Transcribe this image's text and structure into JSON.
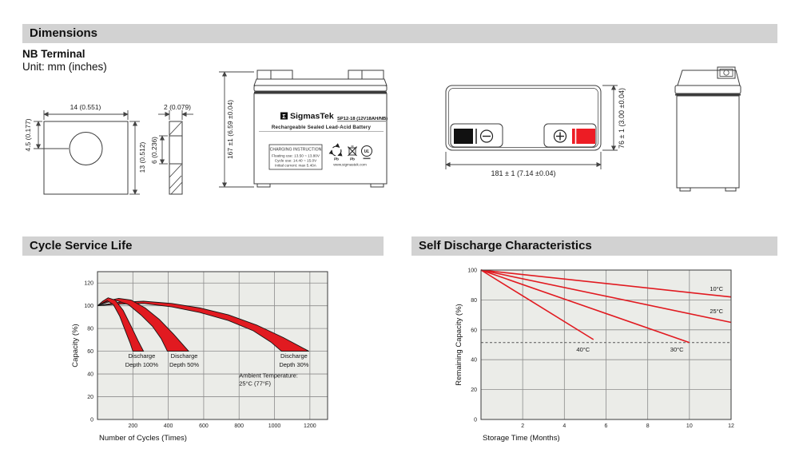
{
  "sections": {
    "dimensions": {
      "title": "Dimensions"
    },
    "terminal": {
      "heading": "NB Terminal",
      "unit_note": "Unit: mm (inches)"
    },
    "cycle_life": {
      "title": "Cycle Service Life"
    },
    "self_discharge": {
      "title": "Self Discharge Characteristics"
    }
  },
  "drawings": {
    "terminal_front": {
      "width": "14 (0.551)",
      "hole_offset": "4.5 (0.177)",
      "height": "13 (0.512)"
    },
    "terminal_side": {
      "thickness": "2 (0.079)",
      "slot_height": "6 (0.236)"
    },
    "battery_front": {
      "height_dim": "167 ±1 (6.59 ±0.04)",
      "brand": "SigmasTek",
      "brand_glyph": "Σ",
      "model": "SP12-18 (12V18AH/NB)",
      "subtitle": "Rechargeable Sealed Lead-Acid Battery",
      "charging_title": "CHARGING INSTRUCTION",
      "charging_line1": "Floating use: 13.50 ~ 13.80V",
      "charging_line2": "Cycle use: 14.40 ~ 15.0V",
      "charging_line3": "Initial current: max 5.40A",
      "pb_recycle": "Pb",
      "pb_trash": "Pb",
      "ul_text": "UL",
      "website": "www.sigmastek.com"
    },
    "battery_top": {
      "width_dim": "181 ± 1 (7.14 ±0.04)",
      "depth_dim": "76 ± 1 (3.00 ±0.04)"
    }
  },
  "colors": {
    "accent_red": "#e11a20",
    "terminal_red": "#ed1c24",
    "header_bar": "#d2d2d2"
  },
  "chart_data": [
    {
      "type": "area",
      "title": "Cycle Service Life",
      "xlabel": "Number of Cycles (Times)",
      "ylabel": "Capacity (%)",
      "xlim": [
        0,
        1300
      ],
      "ylim": [
        0,
        130
      ],
      "x_ticks": [
        200,
        400,
        600,
        800,
        1000,
        1200
      ],
      "y_ticks": [
        0,
        20,
        40,
        60,
        80,
        100,
        120
      ],
      "grid": true,
      "band_color": "#e11a20",
      "bands": [
        {
          "name": "Discharge Depth 30%",
          "upper": [
            [
              0,
              100
            ],
            [
              120,
              103
            ],
            [
              260,
              104
            ],
            [
              420,
              102
            ],
            [
              580,
              98
            ],
            [
              740,
              92
            ],
            [
              900,
              83
            ],
            [
              1050,
              72
            ],
            [
              1195,
              60
            ]
          ],
          "lower": [
            [
              0,
              100
            ],
            [
              120,
              101.5
            ],
            [
              260,
              102
            ],
            [
              420,
              99
            ],
            [
              580,
              94
            ],
            [
              740,
              87
            ],
            [
              880,
              78
            ],
            [
              980,
              68
            ],
            [
              1040,
              60
            ]
          ]
        },
        {
          "name": "Discharge Depth 50%",
          "upper": [
            [
              0,
              100
            ],
            [
              60,
              104.5
            ],
            [
              120,
              106.5
            ],
            [
              190,
              105
            ],
            [
              270,
              98
            ],
            [
              350,
              88
            ],
            [
              430,
              75
            ],
            [
              515,
              60
            ]
          ],
          "lower": [
            [
              0,
              100
            ],
            [
              55,
              103
            ],
            [
              110,
              104.5
            ],
            [
              175,
              101
            ],
            [
              245,
              92
            ],
            [
              310,
              82
            ],
            [
              360,
              71
            ],
            [
              395,
              60
            ]
          ]
        },
        {
          "name": "Discharge Depth 100%",
          "upper": [
            [
              0,
              100
            ],
            [
              30,
              104
            ],
            [
              60,
              107
            ],
            [
              100,
              105
            ],
            [
              145,
              96
            ],
            [
              190,
              82
            ],
            [
              230,
              69
            ],
            [
              260,
              60
            ]
          ],
          "lower": [
            [
              0,
              100
            ],
            [
              25,
              102
            ],
            [
              55,
              104.5
            ],
            [
              90,
              101
            ],
            [
              125,
              91
            ],
            [
              160,
              77
            ],
            [
              185,
              67
            ],
            [
              200,
              60
            ]
          ]
        }
      ],
      "annotations": [
        {
          "text": "Discharge",
          "x": 250,
          "y": 54
        },
        {
          "text": "Depth 100%",
          "x": 250,
          "y": 46.5
        },
        {
          "text": "Discharge",
          "x": 490,
          "y": 54
        },
        {
          "text": "Depth 50%",
          "x": 490,
          "y": 46.5
        },
        {
          "text": "Discharge",
          "x": 1110,
          "y": 54
        },
        {
          "text": "Depth 30%",
          "x": 1110,
          "y": 46.5
        },
        {
          "text": "Ambient Temperature:",
          "x": 800,
          "y": 37,
          "align": "left"
        },
        {
          "text": "25°C (77°F)",
          "x": 800,
          "y": 30,
          "align": "left"
        }
      ]
    },
    {
      "type": "line",
      "title": "Self Discharge Characteristics",
      "xlabel": "Storage Time (Months)",
      "ylabel": "Remaining Capacity (%)",
      "xlim": [
        0,
        12
      ],
      "ylim": [
        0,
        100
      ],
      "x_ticks": [
        2,
        4,
        6,
        8,
        10,
        12
      ],
      "y_ticks": [
        0,
        20,
        40,
        60,
        80,
        100
      ],
      "grid": true,
      "line_color": "#e11a20",
      "dashed_line_y": 51.5,
      "series": [
        {
          "name": "10°C",
          "points": [
            [
              0,
              100
            ],
            [
              12,
              82
            ]
          ],
          "label_x": 11.3,
          "label_y": 86
        },
        {
          "name": "25°C",
          "points": [
            [
              0,
              100
            ],
            [
              12,
              65
            ]
          ],
          "label_x": 11.3,
          "label_y": 71
        },
        {
          "name": "30°C",
          "points": [
            [
              0,
              100
            ],
            [
              10,
              51.5
            ]
          ],
          "label_x": 9.4,
          "label_y": 45.5
        },
        {
          "name": "40°C",
          "points": [
            [
              0,
              100
            ],
            [
              5.4,
              53.5
            ]
          ],
          "label_x": 4.9,
          "label_y": 45.5
        }
      ]
    }
  ]
}
